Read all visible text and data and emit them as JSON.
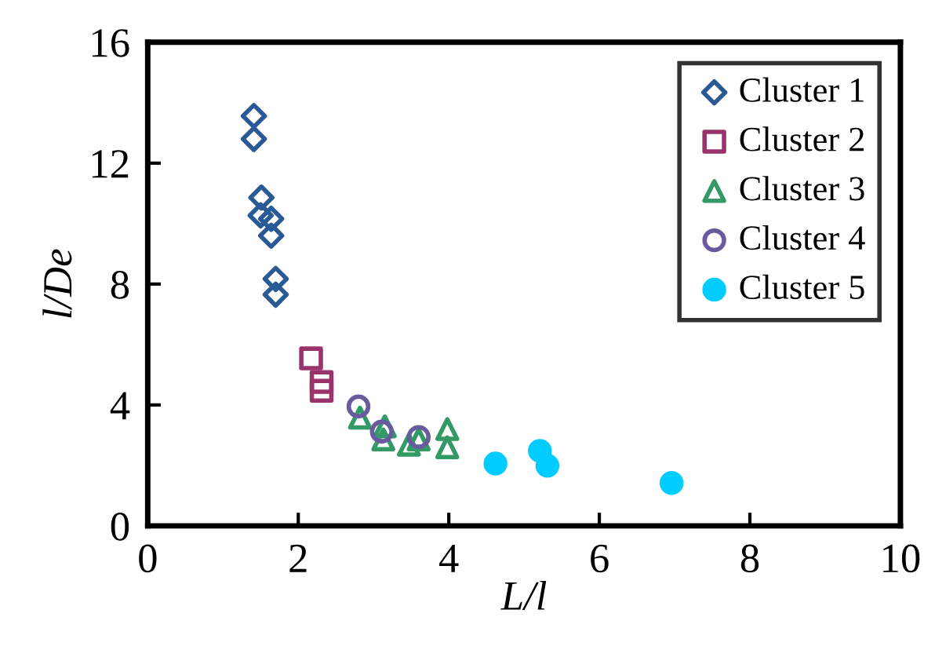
{
  "chart_data": {
    "type": "scatter",
    "xlabel": "L/l",
    "ylabel": "l/De",
    "xlim": [
      0,
      10
    ],
    "ylim": [
      0,
      16
    ],
    "xticks": [
      0,
      2,
      4,
      6,
      8,
      10
    ],
    "yticks": [
      0,
      4,
      8,
      12,
      16
    ],
    "grid": false,
    "legend": "top right",
    "series": [
      {
        "name": "Cluster 1",
        "color": "#2a5a95",
        "marker": "diamond",
        "x": [
          1.41,
          1.41,
          1.51,
          1.5,
          1.64,
          1.64,
          1.7,
          1.7
        ],
        "values": [
          13.56,
          12.8,
          10.86,
          10.27,
          10.16,
          9.6,
          8.17,
          7.65
        ]
      },
      {
        "name": "Cluster 2",
        "color": "#99336b",
        "marker": "square",
        "x": [
          2.17,
          2.31,
          2.31
        ],
        "values": [
          5.54,
          4.76,
          4.47
        ]
      },
      {
        "name": "Cluster 3",
        "color": "#339966",
        "marker": "triangle",
        "x": [
          2.82,
          3.15,
          3.13,
          3.47,
          3.6,
          3.98,
          3.98
        ],
        "values": [
          3.58,
          3.29,
          2.86,
          2.68,
          2.86,
          3.2,
          2.6
        ]
      },
      {
        "name": "Cluster 4",
        "color": "#6a5a9e",
        "marker": "circle",
        "x": [
          2.8,
          3.11,
          3.6
        ],
        "values": [
          3.95,
          3.12,
          2.94
        ]
      },
      {
        "name": "Cluster 5",
        "color": "#00ccff",
        "marker": "circle",
        "x": [
          4.62,
          5.21,
          5.31,
          6.96
        ],
        "values": [
          2.06,
          2.48,
          1.99,
          1.42
        ]
      }
    ]
  }
}
